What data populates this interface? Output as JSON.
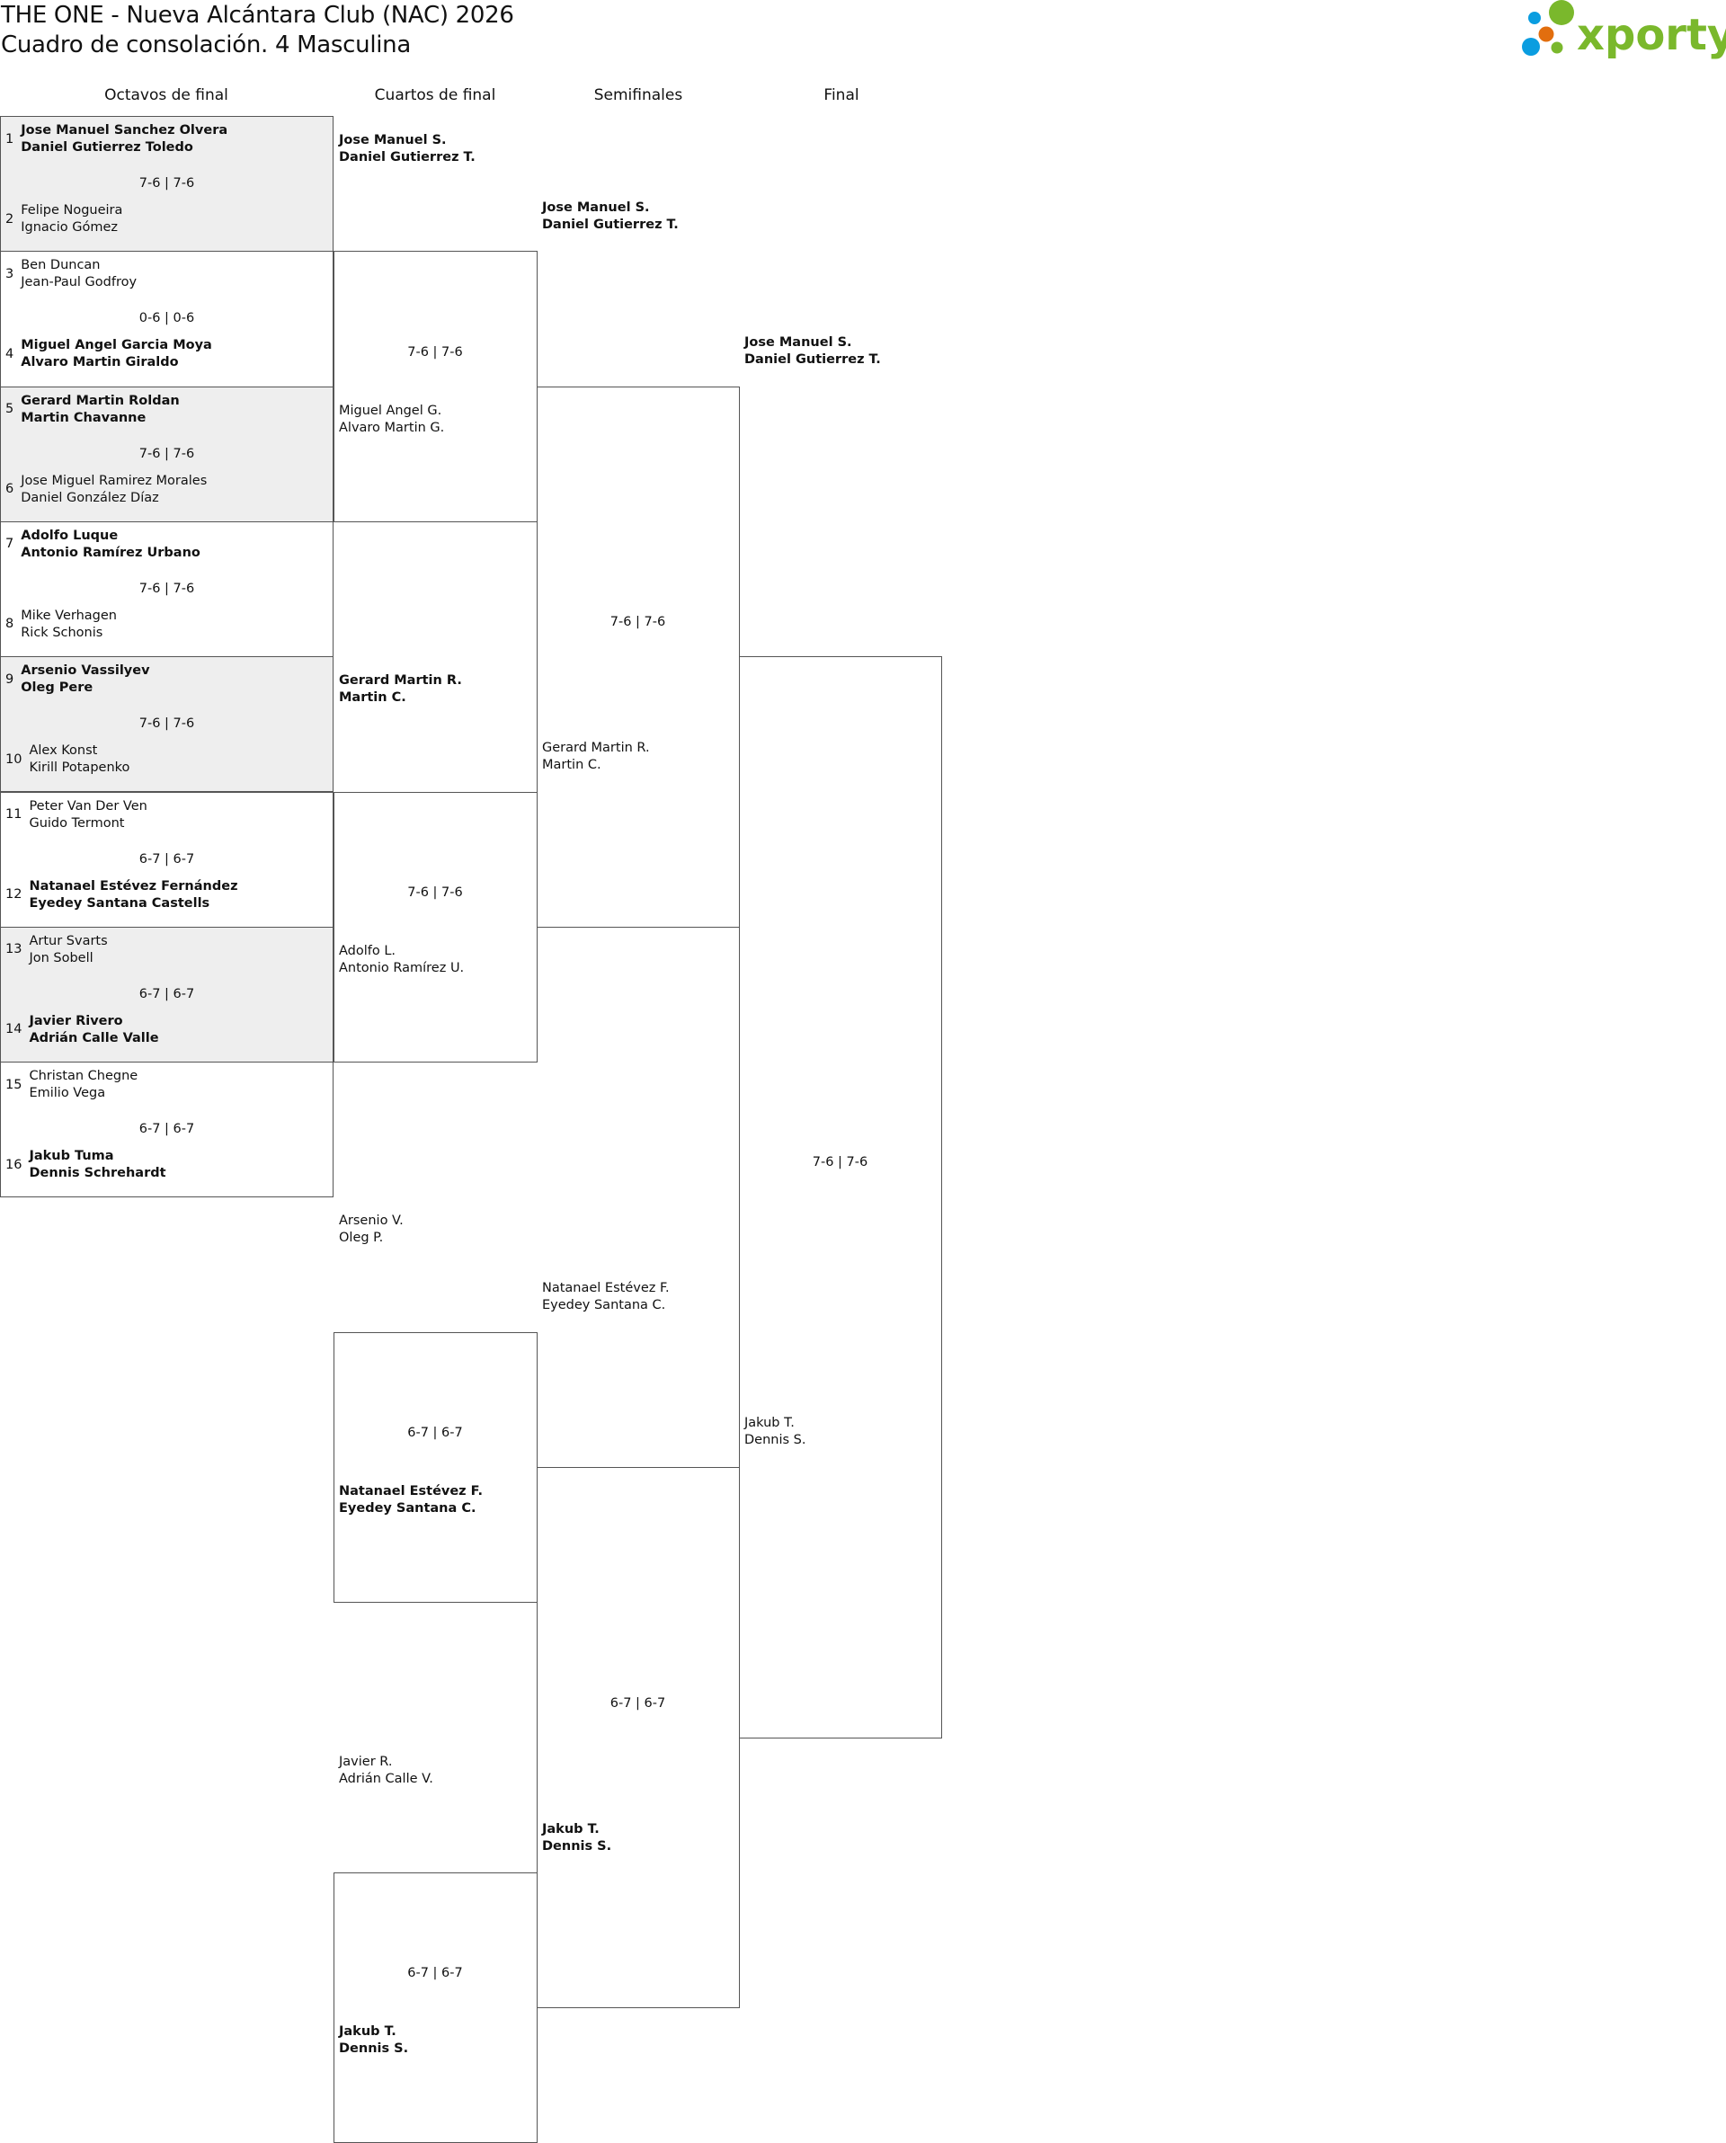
{
  "header": {
    "title": "THE ONE - Nueva Alcántara Club (NAC) 2026",
    "subtitle": "Cuadro de consolación. 4 Masculina"
  },
  "logo": {
    "text": "xporty",
    "colors": {
      "green": "#7ab82c",
      "blue": "#0a9de0",
      "orange": "#e26e0e"
    }
  },
  "rounds": [
    "Octavos de final",
    "Cuartos de final",
    "Semifinales",
    "Final"
  ],
  "round_of_16": [
    {
      "seeds": [
        "1",
        "2"
      ],
      "teams": [
        [
          "Jose Manuel Sanchez Olvera",
          "Daniel Gutierrez Toledo"
        ],
        [
          "Felipe Nogueira",
          "Ignacio Gómez"
        ]
      ],
      "winner": 0,
      "score": "7-6 | 7-6"
    },
    {
      "seeds": [
        "3",
        "4"
      ],
      "teams": [
        [
          "Ben Duncan",
          "Jean-Paul Godfroy"
        ],
        [
          "Miguel Angel Garcia Moya",
          "Alvaro Martin Giraldo"
        ]
      ],
      "winner": 1,
      "score": "0-6 | 0-6"
    },
    {
      "seeds": [
        "5",
        "6"
      ],
      "teams": [
        [
          "Gerard Martin Roldan",
          "Martin Chavanne"
        ],
        [
          "Jose Miguel Ramirez Morales",
          "Daniel González Díaz"
        ]
      ],
      "winner": 0,
      "score": "7-6 | 7-6"
    },
    {
      "seeds": [
        "7",
        "8"
      ],
      "teams": [
        [
          "Adolfo Luque",
          "Antonio Ramírez Urbano"
        ],
        [
          "Mike Verhagen",
          "Rick Schonis"
        ]
      ],
      "winner": 0,
      "score": "7-6 | 7-6"
    },
    {
      "seeds": [
        "9",
        "10"
      ],
      "teams": [
        [
          "Arsenio Vassilyev",
          "Oleg Pere"
        ],
        [
          "Alex Konst",
          "Kirill Potapenko"
        ]
      ],
      "winner": 0,
      "score": "7-6 | 7-6"
    },
    {
      "seeds": [
        "11",
        "12"
      ],
      "teams": [
        [
          "Peter Van Der Ven",
          "Guido Termont"
        ],
        [
          "Natanael Estévez Fernández",
          "Eyedey Santana Castells"
        ]
      ],
      "winner": 1,
      "score": "6-7 | 6-7"
    },
    {
      "seeds": [
        "13",
        "14"
      ],
      "teams": [
        [
          "Artur Svarts",
          "Jon Sobell"
        ],
        [
          "Javier Rivero",
          "Adrián Calle Valle"
        ]
      ],
      "winner": 1,
      "score": "6-7 | 6-7"
    },
    {
      "seeds": [
        "15",
        "16"
      ],
      "teams": [
        [
          "Christan Chegne",
          "Emilio Vega"
        ],
        [
          "Jakub Tuma",
          "Dennis Schrehardt"
        ]
      ],
      "winner": 1,
      "score": "6-7 | 6-7"
    }
  ],
  "quarterfinals": [
    {
      "teams": [
        [
          "Jose Manuel S.",
          "Daniel Gutierrez T."
        ],
        [
          "Miguel Angel G.",
          "Alvaro Martin G."
        ]
      ],
      "winner": 0,
      "score": "7-6 | 7-6"
    },
    {
      "teams": [
        [
          "Gerard Martin R.",
          "Martin C."
        ],
        [
          "Adolfo L.",
          "Antonio Ramírez U."
        ]
      ],
      "winner": 0,
      "score": "7-6 | 7-6"
    },
    {
      "teams": [
        [
          "Arsenio V.",
          "Oleg P."
        ],
        [
          "Natanael Estévez F.",
          "Eyedey Santana C."
        ]
      ],
      "winner": 1,
      "score": "6-7 | 6-7"
    },
    {
      "teams": [
        [
          "Javier R.",
          "Adrián Calle V."
        ],
        [
          "Jakub T.",
          "Dennis S."
        ]
      ],
      "winner": 1,
      "score": "6-7 | 6-7"
    }
  ],
  "semifinals": [
    {
      "teams": [
        [
          "Jose Manuel S.",
          "Daniel Gutierrez T."
        ],
        [
          "Gerard Martin R.",
          "Martin C."
        ]
      ],
      "winner": 0,
      "score": "7-6 | 7-6"
    },
    {
      "teams": [
        [
          "Natanael Estévez F.",
          "Eyedey Santana C."
        ],
        [
          "Jakub T.",
          "Dennis S."
        ]
      ],
      "winner": 1,
      "score": "6-7 | 6-7"
    }
  ],
  "final": [
    {
      "teams": [
        [
          "Jose Manuel S.",
          "Daniel Gutierrez T."
        ],
        [
          "Jakub T.",
          "Dennis S."
        ]
      ],
      "winner": 0,
      "score": "7-6 | 7-6"
    }
  ]
}
